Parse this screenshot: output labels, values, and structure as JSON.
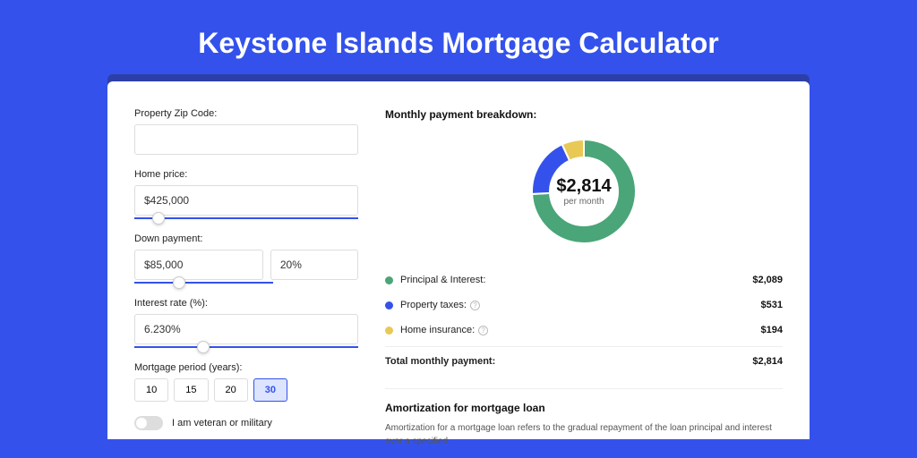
{
  "title": "Keystone Islands Mortgage Calculator",
  "colors": {
    "background": "#3452eb",
    "card_bg": "#ffffff",
    "accent": "#3452eb",
    "principal": "#4aa578",
    "taxes": "#3452eb",
    "insurance": "#e8c956"
  },
  "form": {
    "zip": {
      "label": "Property Zip Code:",
      "value": ""
    },
    "home_price": {
      "label": "Home price:",
      "value": "$425,000",
      "slider_pct": 8
    },
    "down_payment": {
      "label": "Down payment:",
      "value": "$85,000",
      "pct": "20%",
      "slider_pct": 18
    },
    "interest_rate": {
      "label": "Interest rate (%):",
      "value": "6.230%",
      "slider_pct": 28
    },
    "mortgage_period": {
      "label": "Mortgage period (years):",
      "options": [
        "10",
        "15",
        "20",
        "30"
      ],
      "selected": "30"
    },
    "veteran": {
      "label": "I am veteran or military",
      "checked": false
    }
  },
  "breakdown": {
    "title": "Monthly payment breakdown:",
    "donut": {
      "amount": "$2,814",
      "sub": "per month",
      "slices": [
        {
          "label": "Principal & Interest",
          "value": 2089,
          "color": "#4aa578",
          "pct": 74.2
        },
        {
          "label": "Property taxes",
          "value": 531,
          "color": "#3452eb",
          "pct": 18.9
        },
        {
          "label": "Home insurance",
          "value": 194,
          "color": "#e8c956",
          "pct": 6.9
        }
      ]
    },
    "rows": [
      {
        "label": "Principal & Interest:",
        "value": "$2,089",
        "color": "#4aa578",
        "info": false
      },
      {
        "label": "Property taxes:",
        "value": "$531",
        "color": "#3452eb",
        "info": true
      },
      {
        "label": "Home insurance:",
        "value": "$194",
        "color": "#e8c956",
        "info": true
      }
    ],
    "total": {
      "label": "Total monthly payment:",
      "value": "$2,814"
    }
  },
  "amortization": {
    "title": "Amortization for mortgage loan",
    "text": "Amortization for a mortgage loan refers to the gradual repayment of the loan principal and interest over a specified"
  }
}
